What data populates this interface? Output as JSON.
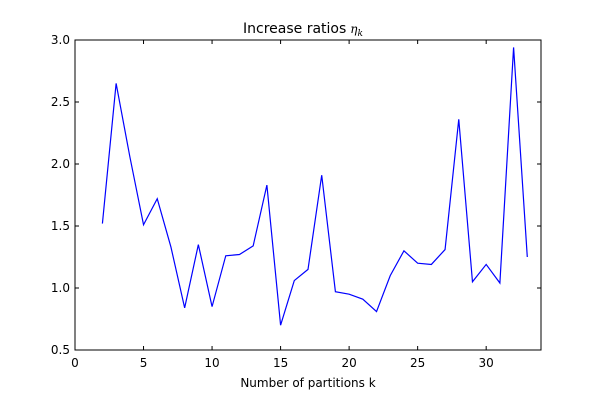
{
  "chart_data": {
    "type": "line",
    "title": "Increase ratios",
    "title_symbol": "η",
    "title_subscript": "k",
    "xlabel": "Number of partitions k",
    "ylabel": "",
    "xlim": [
      0,
      34
    ],
    "ylim": [
      0.5,
      3.0
    ],
    "xticks": [
      0,
      5,
      10,
      15,
      20,
      25,
      30
    ],
    "xtick_labels": [
      "0",
      "5",
      "10",
      "15",
      "20",
      "25",
      "30"
    ],
    "yticks": [
      0.5,
      1.0,
      1.5,
      2.0,
      2.5,
      3.0
    ],
    "ytick_labels": [
      "0.5",
      "1.0",
      "1.5",
      "2.0",
      "2.5",
      "3.0"
    ],
    "grid": false,
    "series": [
      {
        "color": "#0000ff",
        "x": [
          2,
          3,
          4,
          5,
          6,
          7,
          8,
          9,
          10,
          11,
          12,
          13,
          14,
          15,
          16,
          17,
          18,
          19,
          20,
          21,
          22,
          23,
          24,
          25,
          26,
          27,
          28,
          29,
          30,
          31,
          32,
          33
        ],
        "y": [
          1.52,
          2.65,
          2.06,
          1.51,
          1.72,
          1.33,
          0.84,
          1.35,
          0.85,
          1.26,
          1.27,
          1.34,
          1.83,
          0.7,
          1.06,
          1.15,
          1.91,
          0.97,
          0.95,
          0.91,
          0.81,
          1.1,
          1.3,
          1.2,
          1.19,
          1.31,
          2.36,
          1.05,
          1.19,
          1.04,
          2.94,
          1.25
        ]
      }
    ]
  }
}
